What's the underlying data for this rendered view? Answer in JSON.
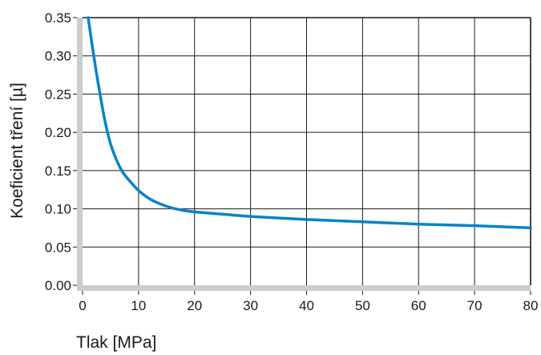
{
  "chart_data": {
    "type": "line",
    "title": "",
    "xlabel": "Tlak [MPa]",
    "ylabel": "Koeficient tření [µ]",
    "xlim": [
      0,
      80
    ],
    "ylim": [
      0,
      0.35
    ],
    "grid": true,
    "x_ticks": [
      0,
      10,
      20,
      30,
      40,
      50,
      60,
      70,
      80
    ],
    "x_tick_labels": [
      "0",
      "10",
      "20",
      "30",
      "40",
      "50",
      "60",
      "70",
      "80"
    ],
    "y_ticks": [
      0,
      0.05,
      0.1,
      0.15,
      0.2,
      0.25,
      0.3,
      0.35
    ],
    "y_tick_labels": [
      "0.00",
      "0.05",
      "0.10",
      "0.15",
      "0.20",
      "0.25",
      "0.30",
      "0.35"
    ],
    "series": [
      {
        "color": "#0a82c8",
        "x": [
          1,
          2,
          3,
          4,
          5,
          6,
          7,
          8,
          10,
          12,
          14,
          16,
          18,
          20,
          25,
          30,
          40,
          50,
          60,
          70,
          80
        ],
        "y": [
          0.35,
          0.3,
          0.255,
          0.215,
          0.185,
          0.165,
          0.15,
          0.14,
          0.124,
          0.113,
          0.106,
          0.101,
          0.098,
          0.096,
          0.093,
          0.09,
          0.086,
          0.083,
          0.08,
          0.078,
          0.075
        ]
      }
    ]
  },
  "colors": {
    "axis_band": "#cccccc",
    "grid": "#1a1a1a",
    "line": "#0a82c8"
  }
}
